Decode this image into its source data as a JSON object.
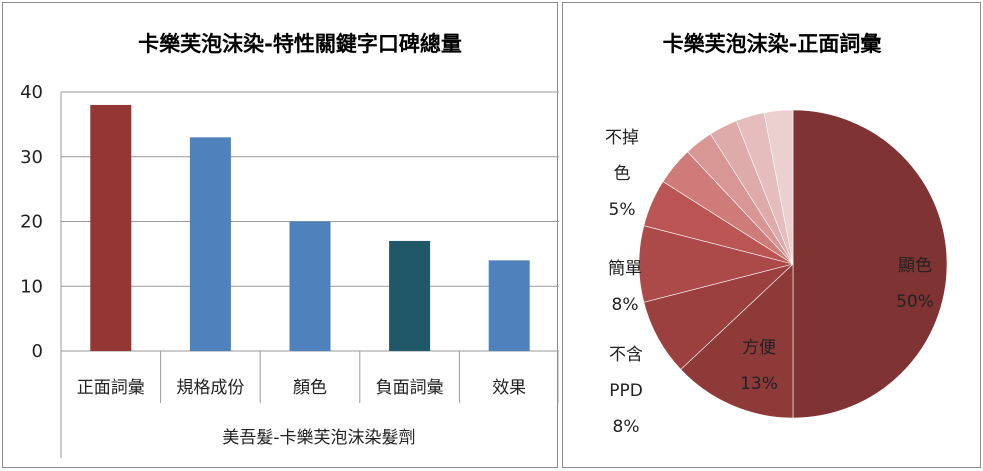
{
  "chart_data": [
    {
      "type": "bar",
      "title": "卡樂芙泡沫染-特性關鍵字口碑總量",
      "categories": [
        "正面詞彙",
        "規格成份",
        "顏色",
        "負面詞彙",
        "效果"
      ],
      "values": [
        38,
        33,
        20,
        17,
        14
      ],
      "bar_colors": [
        "#943634",
        "#4f81bd",
        "#4f81bd",
        "#215868",
        "#4f81bd"
      ],
      "ylim": [
        0,
        40
      ],
      "yticks": [
        "0",
        "10",
        "20",
        "30",
        "40"
      ],
      "group_label": "美吾髮-卡樂芙泡沫染髮劑",
      "grid": true
    },
    {
      "type": "pie",
      "title": "卡樂芙泡沫染-正面詞彙",
      "slices": [
        {
          "label": "顯色",
          "value": 50,
          "value_label": "50%",
          "color": "#7f3332"
        },
        {
          "label": "方便",
          "value": 13,
          "value_label": "13%",
          "color": "#8e3a38"
        },
        {
          "label": "不含PPD",
          "value": 8,
          "value_label": "8%",
          "color": "#9c403f"
        },
        {
          "label": "簡單",
          "value": 8,
          "value_label": "8%",
          "color": "#ab4a48"
        },
        {
          "label": "不掉色",
          "value": 5,
          "value_label": "5%",
          "color": "#bb5553"
        },
        {
          "label": "",
          "value": 4,
          "value_label": "",
          "color": "#cf7b79"
        },
        {
          "label": "",
          "value": 3,
          "value_label": "",
          "color": "#d89695"
        },
        {
          "label": "",
          "value": 3,
          "value_label": "",
          "color": "#dfabaa"
        },
        {
          "label": "",
          "value": 3,
          "value_label": "",
          "color": "#e5bdbc"
        },
        {
          "label": "",
          "value": 3,
          "value_label": "",
          "color": "#ebd0cf"
        }
      ],
      "label_lines": [
        {
          "lines": [
            "顯色",
            "50%"
          ]
        },
        {
          "lines": [
            "方便",
            "13%"
          ]
        },
        {
          "lines": [
            "不含",
            "PPD",
            "8%"
          ]
        },
        {
          "lines": [
            "簡單",
            "8%"
          ]
        },
        {
          "lines": [
            "不掉",
            "色",
            "5%"
          ]
        }
      ]
    }
  ]
}
